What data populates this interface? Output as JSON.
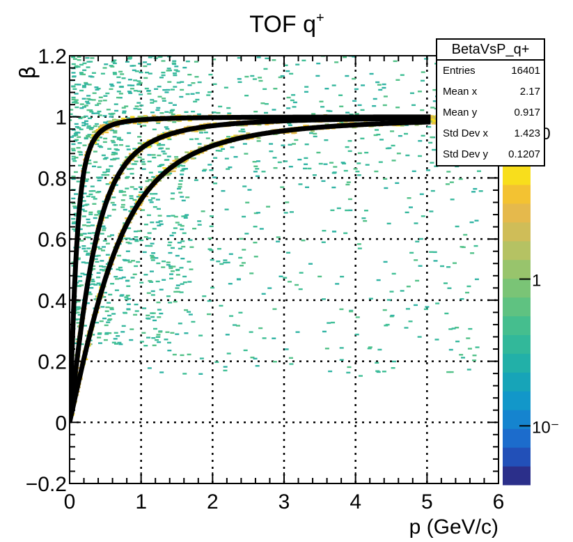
{
  "chart_data": {
    "type": "heatmap",
    "title": "TOF q",
    "title_superscript": "+",
    "xlabel": "p (GeV/c)",
    "ylabel": "β",
    "xlim": [
      0,
      6
    ],
    "ylim": [
      -0.2,
      1.2
    ],
    "x_ticks": [
      "0",
      "1",
      "2",
      "3",
      "4",
      "5",
      "6"
    ],
    "y_ticks": [
      "−0.2",
      "0",
      "0.2",
      "0.4",
      "0.6",
      "0.8",
      "1",
      "1.2"
    ],
    "grid": true,
    "colorbar": {
      "scale": "log",
      "labels": [
        {
          "text": "1",
          "value": 1
        },
        {
          "text": "10",
          "value": 10
        },
        {
          "text": "10⁻",
          "value": 0.1
        }
      ],
      "colors": [
        "#2b2f8a",
        "#2250b8",
        "#1c6ccc",
        "#1584cf",
        "#1297c9",
        "#17a4b8",
        "#22b0a8",
        "#32b89a",
        "#45be8e",
        "#5fc281",
        "#7ac476",
        "#98c46c",
        "#b5c263",
        "#cfbd58",
        "#e5b94c",
        "#f3c232",
        "#f8de1c"
      ]
    },
    "bands": [
      {
        "name": "",
        "mass_GeV": 0.1396,
        "beta_spread": 0.004
      },
      {
        "name": "",
        "mass_GeV": 0.4937,
        "beta_spread": 0.006
      },
      {
        "name": "",
        "mass_GeV": 0.9383,
        "beta_spread": 0.008
      }
    ],
    "fit_curves": [
      {
        "name": "",
        "mass_GeV": 0.1396
      },
      {
        "name": "",
        "mass_GeV": 0.4937
      },
      {
        "name": "",
        "mass_GeV": 0.9383
      }
    ],
    "background_density": "sparse",
    "stats": {
      "title": "BetaVsP_q+",
      "rows": [
        {
          "key": "Entries",
          "value": "16401"
        },
        {
          "key": "Mean x",
          "value": "2.17"
        },
        {
          "key": "Mean y",
          "value": "0.917"
        },
        {
          "key": "Std Dev x",
          "value": "1.423"
        },
        {
          "key": "Std Dev y",
          "value": "0.1207"
        }
      ]
    }
  }
}
